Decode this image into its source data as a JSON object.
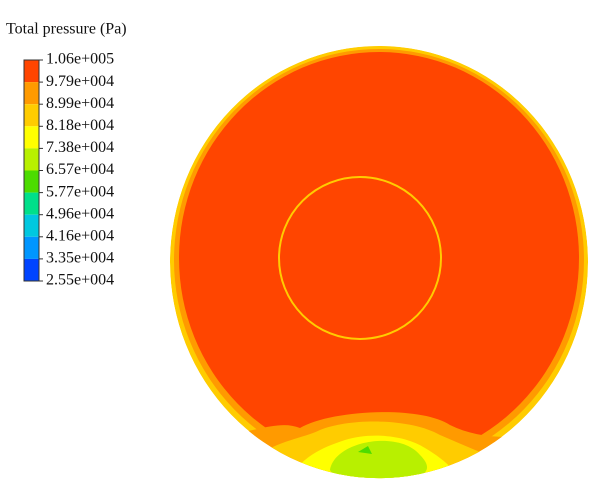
{
  "legend": {
    "title": "Total pressure (Pa)",
    "labels": [
      "1.06e+005",
      "9.79e+004",
      "8.99e+004",
      "8.18e+004",
      "7.38e+004",
      "6.57e+004",
      "5.77e+004",
      "4.96e+004",
      "4.16e+004",
      "3.35e+004",
      "2.55e+004"
    ],
    "colors": [
      "#ff4500",
      "#ff9a00",
      "#ffcc00",
      "#ffff00",
      "#b8f000",
      "#4cdc00",
      "#00e08a",
      "#00c8e0",
      "#0096ff",
      "#0044ff"
    ]
  }
}
